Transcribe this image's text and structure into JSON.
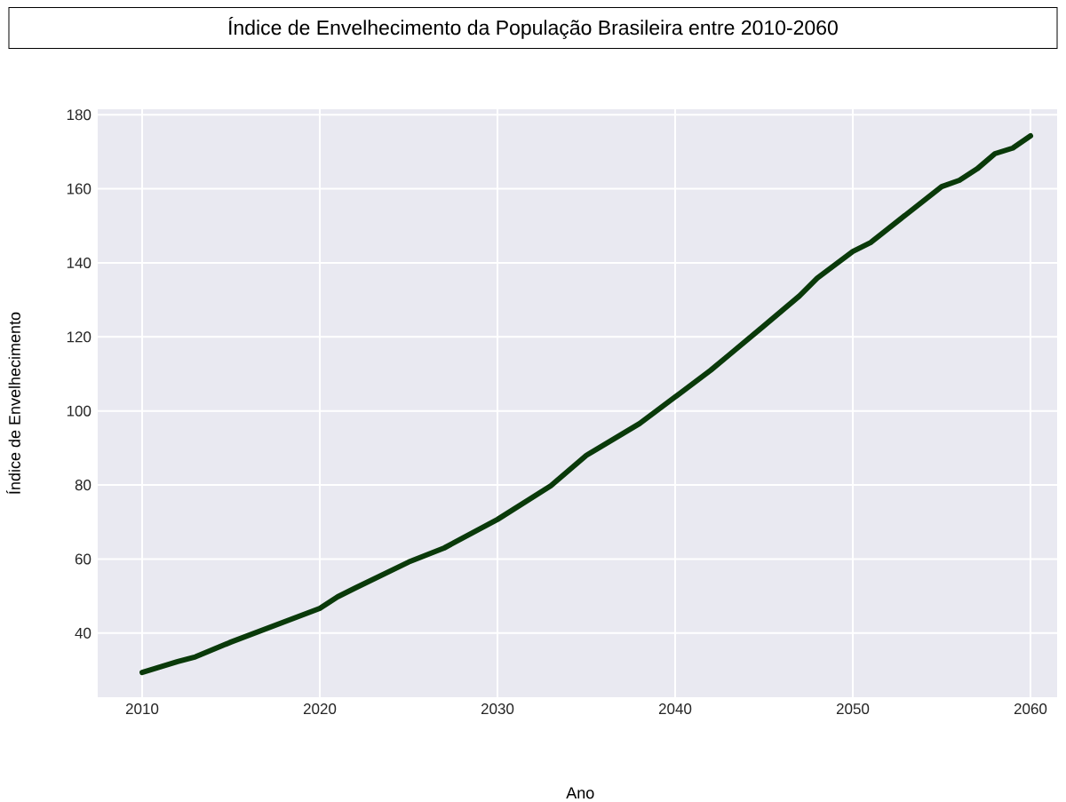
{
  "chart_data": {
    "type": "line",
    "title": "Índice de Envelhecimento da População Brasileira entre 2010-2060",
    "xlabel": "Ano",
    "ylabel": "Índice de Envelhecimento",
    "x": [
      2010,
      2012,
      2013,
      2015,
      2020,
      2021,
      2022,
      2025,
      2027,
      2030,
      2033,
      2035,
      2038,
      2040,
      2042,
      2043,
      2045,
      2047,
      2048,
      2050,
      2051,
      2055,
      2056,
      2057,
      2058,
      2059,
      2060
    ],
    "series": [
      {
        "color": "#0a3a0a",
        "values": [
          29.4,
          32.3,
          33.6,
          37.6,
          46.7,
          49.8,
          52.2,
          59.2,
          63,
          70.7,
          79.8,
          88,
          96.6,
          103.8,
          111,
          115,
          123,
          131.1,
          135.9,
          143.1,
          145.5,
          160.6,
          162.3,
          165.4,
          169.5,
          171,
          174.3
        ]
      }
    ],
    "xlim": [
      2007.5,
      2061.5
    ],
    "ylim": [
      22.7,
      181.5
    ],
    "xticks": [
      2010,
      2020,
      2030,
      2040,
      2050,
      2060
    ],
    "yticks": [
      40,
      60,
      80,
      100,
      120,
      140,
      160,
      180
    ],
    "grid": true,
    "marker": "none",
    "line_style": "solid"
  }
}
